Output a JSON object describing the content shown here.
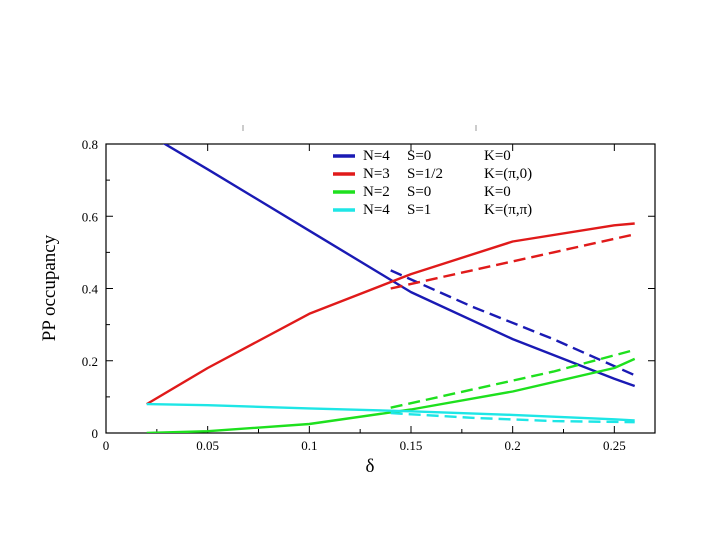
{
  "chart_data": {
    "type": "line",
    "title": "",
    "xlabel": "δ",
    "ylabel": "PP occupancy",
    "xlim": [
      0,
      0.27
    ],
    "ylim": [
      0,
      0.8
    ],
    "xticks": [
      0,
      0.05,
      0.1,
      0.15,
      0.2,
      0.25
    ],
    "xtick_labels": [
      "0",
      "0.05",
      "0.1",
      "0.15",
      "0.2",
      "0.25"
    ],
    "yticks": [
      0,
      0.2,
      0.4,
      0.6,
      0.8
    ],
    "ytick_labels": [
      "0",
      "0.2",
      "0.4",
      "0.6",
      "0.8"
    ],
    "grid": false,
    "legend_position": "top-right",
    "legend": [
      {
        "n": "N=4",
        "s": "S=0",
        "k": "K=0",
        "color": "#1a1ab4"
      },
      {
        "n": "N=3",
        "s": "S=1/2",
        "k": "K=(π,0)",
        "color": "#e01a1a"
      },
      {
        "n": "N=2",
        "s": "S=0",
        "k": "K=0",
        "color": "#1ee01e"
      },
      {
        "n": "N=4",
        "s": "S=1",
        "k": "K=(π,π)",
        "color": "#1ee6e6"
      }
    ],
    "series": [
      {
        "legend_index": 0,
        "color": "#1a1ab4",
        "style": "solid",
        "x": [
          0.02,
          0.05,
          0.1,
          0.15,
          0.2,
          0.25,
          0.26
        ],
        "y": [
          0.83,
          0.73,
          0.56,
          0.39,
          0.26,
          0.15,
          0.13
        ]
      },
      {
        "legend_index": 0,
        "color": "#1a1ab4",
        "style": "dashed",
        "x": [
          0.14,
          0.18,
          0.22,
          0.26
        ],
        "y": [
          0.45,
          0.35,
          0.26,
          0.16
        ]
      },
      {
        "legend_index": 1,
        "color": "#e01a1a",
        "style": "solid",
        "x": [
          0.02,
          0.05,
          0.1,
          0.15,
          0.2,
          0.25,
          0.26
        ],
        "y": [
          0.08,
          0.18,
          0.33,
          0.44,
          0.53,
          0.575,
          0.58
        ]
      },
      {
        "legend_index": 1,
        "color": "#e01a1a",
        "style": "dashed",
        "x": [
          0.14,
          0.18,
          0.22,
          0.26
        ],
        "y": [
          0.4,
          0.45,
          0.5,
          0.55
        ]
      },
      {
        "legend_index": 2,
        "color": "#1ee01e",
        "style": "solid",
        "x": [
          0.02,
          0.05,
          0.1,
          0.15,
          0.2,
          0.25,
          0.26
        ],
        "y": [
          0.0,
          0.005,
          0.025,
          0.065,
          0.115,
          0.18,
          0.205
        ]
      },
      {
        "legend_index": 2,
        "color": "#1ee01e",
        "style": "dashed",
        "x": [
          0.14,
          0.18,
          0.22,
          0.26
        ],
        "y": [
          0.07,
          0.12,
          0.17,
          0.23
        ]
      },
      {
        "legend_index": 3,
        "color": "#1ee6e6",
        "style": "solid",
        "x": [
          0.02,
          0.05,
          0.1,
          0.15,
          0.2,
          0.25,
          0.26
        ],
        "y": [
          0.08,
          0.077,
          0.068,
          0.06,
          0.05,
          0.038,
          0.035
        ]
      },
      {
        "legend_index": 3,
        "color": "#1ee6e6",
        "style": "dashed",
        "x": [
          0.14,
          0.18,
          0.22,
          0.26
        ],
        "y": [
          0.055,
          0.042,
          0.033,
          0.03
        ]
      }
    ]
  }
}
